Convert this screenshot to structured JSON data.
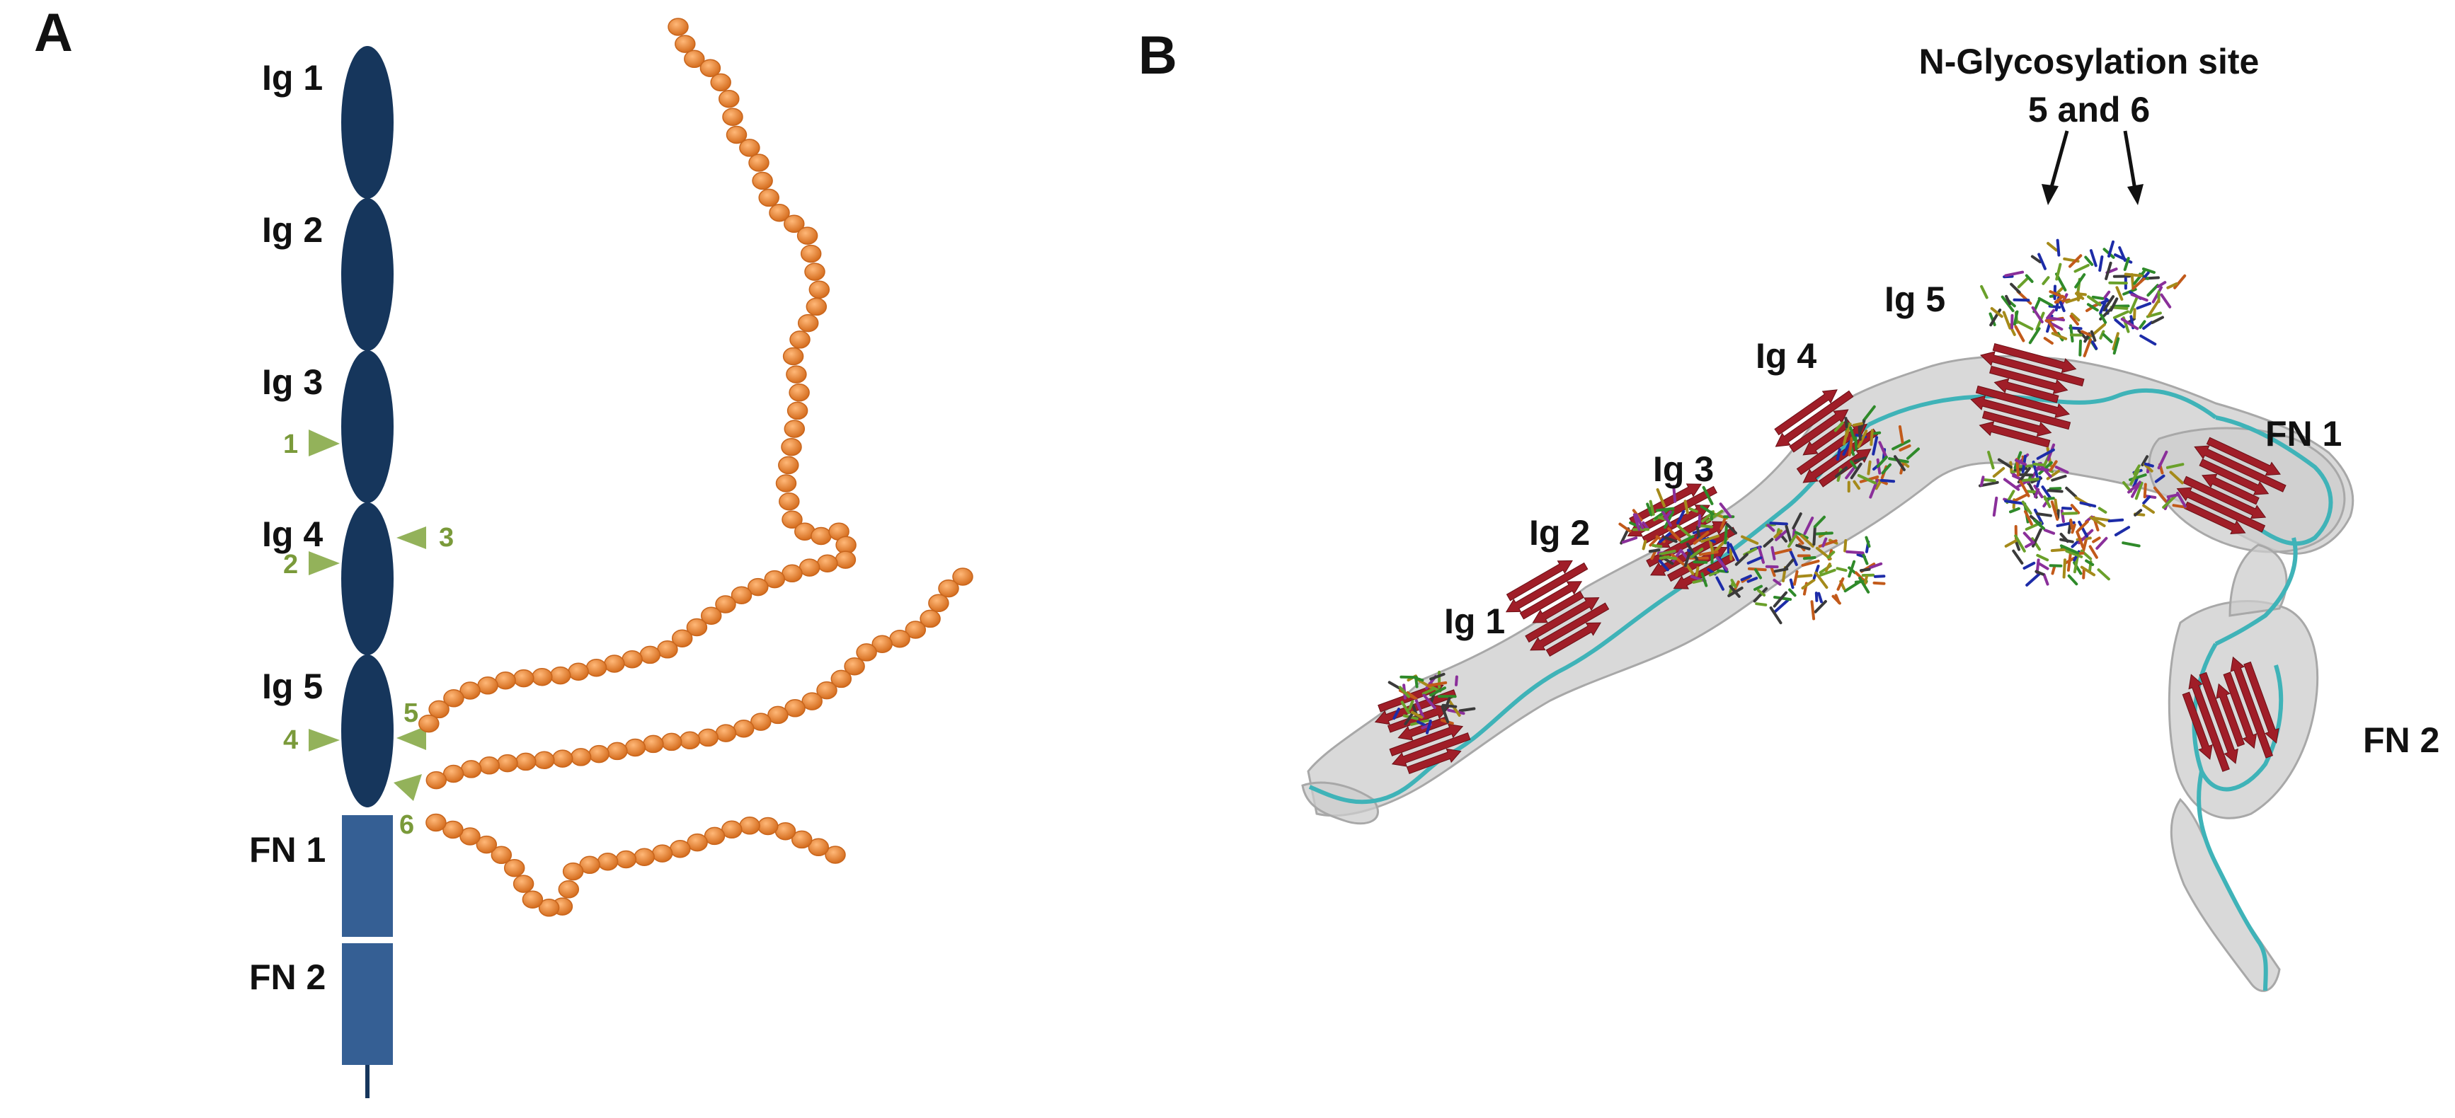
{
  "panel_a": {
    "letter": "A",
    "domains": [
      "Ig 1",
      "Ig 2",
      "Ig 3",
      "Ig 4",
      "Ig 5",
      "FN 1",
      "FN 2"
    ],
    "sites": [
      "1",
      "2",
      "3",
      "4",
      "5",
      "6"
    ]
  },
  "panel_b": {
    "letter": "B",
    "annotation_line1": "N-Glycosylation site",
    "annotation_line2": "5 and 6",
    "domains": [
      "Ig 1",
      "Ig 2",
      "Ig 3",
      "Ig 4",
      "Ig 5",
      "FN 1",
      "FN 2"
    ]
  },
  "colors": {
    "ig_domain": "#16365c",
    "fn_domain": "#355f94",
    "glycan_bead": "#ee8a3a",
    "glyco_marker": "#93b25a",
    "glyco_text": "#7a9a3a",
    "surface": "#c8c8c8",
    "beta_sheet": "#a01e28",
    "coil": "#3fb3b8"
  }
}
